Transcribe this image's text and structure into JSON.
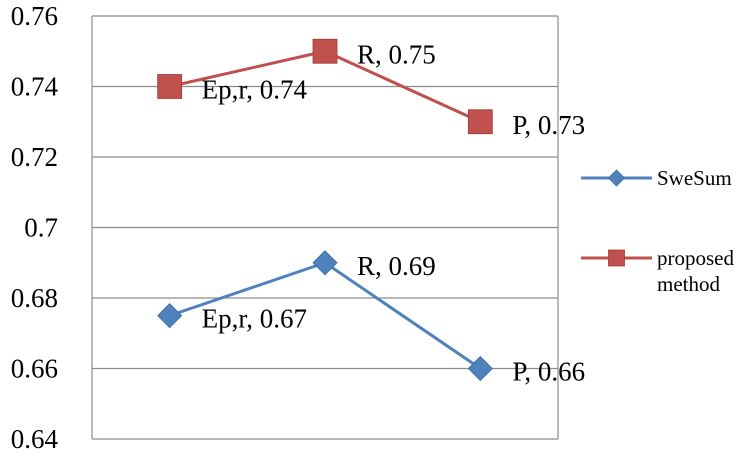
{
  "chart_data": {
    "type": "line",
    "categories": [
      "Ep,r",
      "R",
      "P"
    ],
    "ylim": [
      0.64,
      0.76
    ],
    "yticks": [
      "0.64",
      "0.66",
      "0.68",
      "0.7",
      "0.72",
      "0.74",
      "0.76"
    ],
    "grid": true,
    "legend_position": "right",
    "series": [
      {
        "name": "SweSum",
        "color": "#4F81BD",
        "marker": "diamond",
        "values": [
          0.675,
          0.69,
          0.66
        ],
        "labels": [
          "Ep,r, 0.67",
          "R, 0.69",
          "P, 0.66"
        ]
      },
      {
        "name": "proposed method",
        "name_lines": [
          "proposed",
          "method"
        ],
        "color": "#C0504D",
        "marker": "square",
        "values": [
          0.74,
          0.75,
          0.73
        ],
        "labels": [
          "Ep,r, 0.74",
          "R, 0.75",
          "P, 0.73"
        ]
      }
    ]
  }
}
